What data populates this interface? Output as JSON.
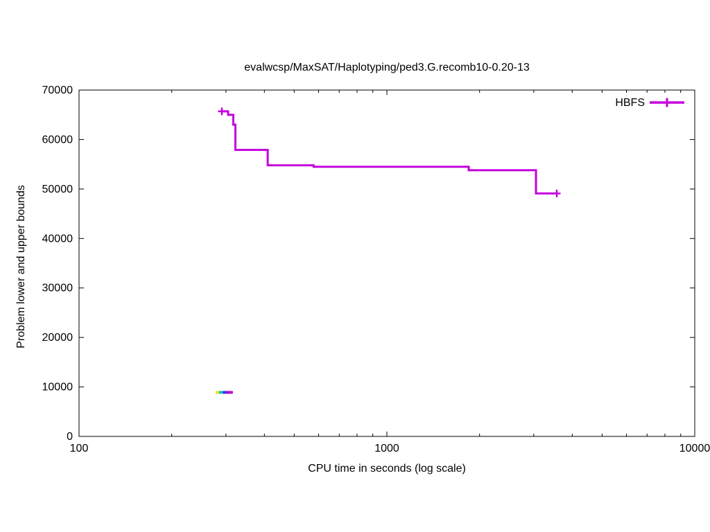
{
  "chart_data": {
    "type": "line",
    "subtype": "steps-post",
    "title": "evalwcsp/MaxSAT/Haplotyping/ped3.G.recomb10-0.20-13",
    "xlabel": "CPU time in seconds (log scale)",
    "ylabel": "Problem lower and upper bounds",
    "x_scale": "log",
    "xlim": [
      100,
      10000
    ],
    "ylim": [
      0,
      70000
    ],
    "grid": false,
    "x_major_ticks": [
      100,
      1000,
      10000
    ],
    "x_major_tick_labels": [
      "100",
      "1000",
      "10000"
    ],
    "y_ticks": [
      0,
      10000,
      20000,
      30000,
      40000,
      50000,
      60000,
      70000
    ],
    "legend": {
      "position": "top-right",
      "entries": [
        {
          "label": "HBFS",
          "color": "#c400dc",
          "marker": "plus"
        }
      ]
    },
    "series": [
      {
        "name": "HBFS",
        "role": "upper bound",
        "style": "steps-post",
        "color": "#c400dc",
        "marker": "plus",
        "points": [
          [
            291,
            65700
          ],
          [
            305,
            65000
          ],
          [
            317,
            63000
          ],
          [
            322,
            57900
          ],
          [
            410,
            54800
          ],
          [
            578,
            54500
          ],
          [
            1844,
            53800
          ],
          [
            3050,
            49100
          ],
          [
            3563,
            49100
          ]
        ]
      }
    ],
    "lower_bound_segments": [
      {
        "x1": 278,
        "x2": 285,
        "y": 8900,
        "color": "#e8e100"
      },
      {
        "x1": 285,
        "x2": 293,
        "y": 8900,
        "color": "#00c5c5"
      },
      {
        "x1": 293,
        "x2": 300,
        "y": 8900,
        "color": "#3030e0"
      },
      {
        "x1": 300,
        "x2": 308,
        "y": 8900,
        "color": "#9400d3"
      },
      {
        "x1": 308,
        "x2": 316,
        "y": 8900,
        "color": "#c400dc"
      }
    ]
  }
}
